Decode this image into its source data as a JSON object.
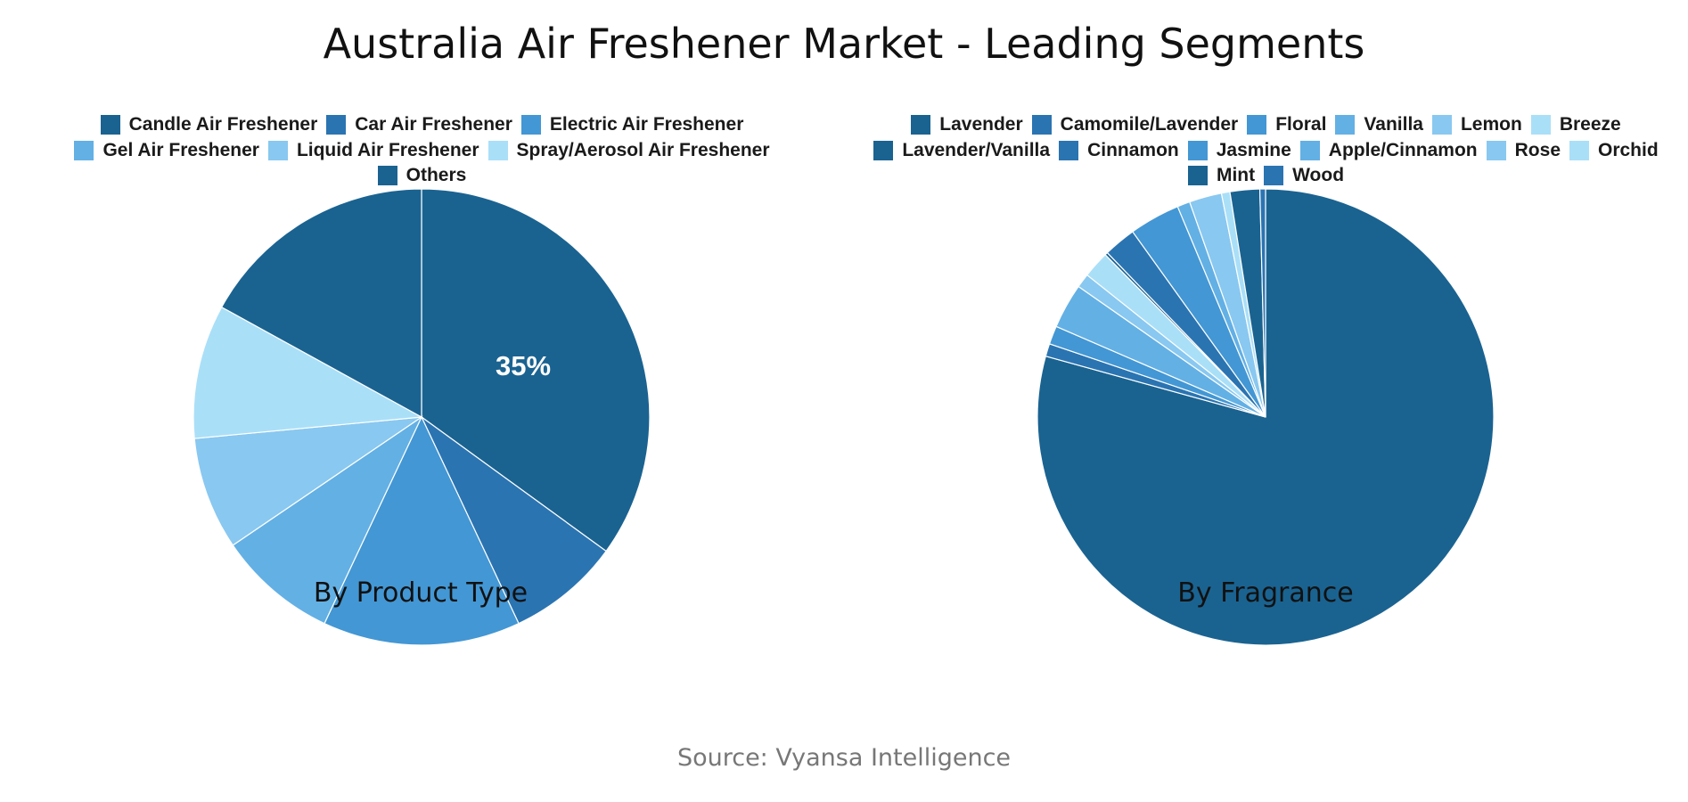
{
  "title": "Australia Air Freshener Market - Leading Segments",
  "source": "Source: Vyansa Intelligence",
  "chart_data": [
    {
      "type": "pie",
      "subtitle": "By Product Type",
      "labels": [
        "Candle Air Freshener",
        "Car Air Freshener",
        "Electric Air Freshener",
        "Gel Air Freshener",
        "Liquid Air Freshener",
        "Spray/Aerosol Air Freshener",
        "Others"
      ],
      "values": [
        35,
        8,
        14,
        8.5,
        8,
        9.5,
        17
      ],
      "colors": [
        "#1a6391",
        "#2b74b2",
        "#4397d4",
        "#63b0e5",
        "#89c8f0",
        "#aadff8",
        "#1a6391"
      ],
      "data_labels": [
        "35%",
        "",
        "",
        "",
        "",
        "",
        ""
      ],
      "legend_rows": [
        [
          0,
          1,
          2
        ],
        [
          3,
          4,
          5
        ],
        [
          6
        ]
      ],
      "start_angle_deg": 0,
      "legend_position": "top"
    },
    {
      "type": "pie",
      "subtitle": "By Fragrance",
      "labels": [
        "Lavender",
        "Camomile/Lavender",
        "Floral",
        "Vanilla",
        "Lemon",
        "Breeze",
        "Lavender/Vanilla",
        "Cinnamon",
        "Jasmine",
        "Apple/Cinnamon",
        "Rose",
        "Orchid",
        "Mint",
        "Wood"
      ],
      "values": [
        79.3,
        0.9,
        1.3,
        3.2,
        1.0,
        1.9,
        0.2,
        2.3,
        3.6,
        0.9,
        2.3,
        0.6,
        2.1,
        0.4
      ],
      "colors": [
        "#1a6391",
        "#2b74b2",
        "#4397d4",
        "#63b0e5",
        "#89c8f0",
        "#aadff8",
        "#1a6391",
        "#2b74b2",
        "#4397d4",
        "#63b0e5",
        "#89c8f0",
        "#aadff8",
        "#1a6391",
        "#2b74b2"
      ],
      "data_labels": [],
      "legend_rows": [
        [
          0,
          1,
          2,
          3,
          4,
          5
        ],
        [
          6,
          7,
          8,
          9,
          10,
          11
        ],
        [
          12,
          13
        ]
      ],
      "start_angle_deg": 0,
      "legend_position": "top"
    }
  ]
}
